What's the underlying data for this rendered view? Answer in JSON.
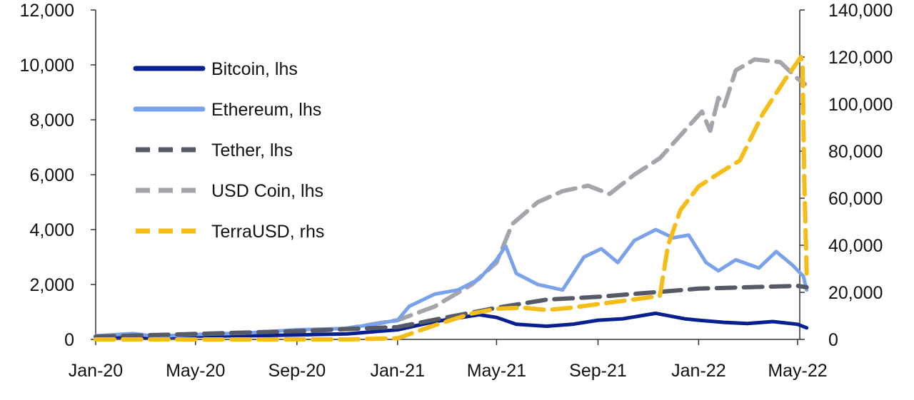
{
  "chart_data": {
    "type": "line",
    "title": "",
    "xlabel": "",
    "ylabel": "",
    "x_tick_labels": [
      "Jan-20",
      "May-20",
      "Sep-20",
      "Jan-21",
      "May-21",
      "Sep-21",
      "Jan-22",
      "May-22"
    ],
    "x_ticks": [
      "2020-01-01",
      "2020-05-01",
      "2020-09-01",
      "2021-01-01",
      "2021-05-01",
      "2021-09-01",
      "2022-01-01",
      "2022-05-01"
    ],
    "xlim": [
      "2020-01-01",
      "2022-05-15"
    ],
    "y_left": {
      "lim": [
        0,
        12000
      ],
      "ticks": [
        0,
        2000,
        4000,
        6000,
        8000,
        10000,
        12000
      ],
      "tick_labels": [
        "0",
        "2,000",
        "4,000",
        "6,000",
        "8,000",
        "10,000",
        "12,000"
      ]
    },
    "y_right": {
      "lim": [
        0,
        140000
      ],
      "ticks": [
        0,
        20000,
        40000,
        60000,
        80000,
        100000,
        120000,
        140000
      ],
      "tick_labels": [
        "0",
        "20,000",
        "40,000",
        "60,000",
        "80,000",
        "100,000",
        "120,000",
        "140,000"
      ]
    },
    "grid": false,
    "legend_position": "top-left",
    "series": [
      {
        "name": "Bitcoin, lhs",
        "axis": "left",
        "color": "#0a1f8f",
        "style": "solid",
        "x": [
          "2020-01-01",
          "2020-03-15",
          "2020-05-01",
          "2020-07-01",
          "2020-09-01",
          "2020-11-01",
          "2021-01-01",
          "2021-02-15",
          "2021-04-10",
          "2021-05-01",
          "2021-05-25",
          "2021-07-01",
          "2021-08-01",
          "2021-09-01",
          "2021-10-01",
          "2021-11-10",
          "2021-12-15",
          "2022-01-01",
          "2022-02-01",
          "2022-03-01",
          "2022-04-01",
          "2022-05-01",
          "2022-05-12"
        ],
        "y": [
          100,
          70,
          120,
          130,
          160,
          200,
          350,
          650,
          900,
          800,
          550,
          480,
          550,
          700,
          750,
          950,
          750,
          700,
          620,
          580,
          650,
          550,
          420
        ]
      },
      {
        "name": "Ethereum, lhs",
        "axis": "left",
        "color": "#7aa2ea",
        "style": "solid",
        "x": [
          "2020-01-01",
          "2020-02-15",
          "2020-03-15",
          "2020-05-01",
          "2020-07-01",
          "2020-09-01",
          "2020-11-01",
          "2021-01-01",
          "2021-01-15",
          "2021-02-15",
          "2021-03-15",
          "2021-04-10",
          "2021-05-01",
          "2021-05-12",
          "2021-05-25",
          "2021-06-20",
          "2021-07-20",
          "2021-08-15",
          "2021-09-05",
          "2021-09-25",
          "2021-10-15",
          "2021-11-10",
          "2021-12-01",
          "2021-12-20",
          "2022-01-10",
          "2022-01-25",
          "2022-02-15",
          "2022-03-15",
          "2022-04-05",
          "2022-04-25",
          "2022-05-08",
          "2022-05-12"
        ],
        "y": [
          130,
          210,
          110,
          180,
          230,
          350,
          400,
          700,
          1200,
          1650,
          1800,
          2200,
          2900,
          3400,
          2400,
          2000,
          1800,
          3000,
          3300,
          2800,
          3600,
          4000,
          3700,
          3800,
          2800,
          2500,
          2900,
          2600,
          3200,
          2700,
          2300,
          1800
        ]
      },
      {
        "name": "Tether, lhs",
        "axis": "left",
        "color": "#555a66",
        "style": "dashed",
        "x": [
          "2020-01-01",
          "2020-05-01",
          "2020-09-01",
          "2021-01-01",
          "2021-03-01",
          "2021-05-01",
          "2021-07-01",
          "2021-09-01",
          "2021-11-01",
          "2022-01-01",
          "2022-03-01",
          "2022-05-01",
          "2022-05-12"
        ],
        "y": [
          100,
          200,
          300,
          450,
          800,
          1150,
          1450,
          1550,
          1700,
          1850,
          1900,
          1950,
          1900
        ]
      },
      {
        "name": "USD Coin, lhs",
        "axis": "left",
        "color": "#a3a5ab",
        "style": "dashed",
        "x": [
          "2020-01-01",
          "2020-05-01",
          "2020-09-01",
          "2020-11-01",
          "2021-01-01",
          "2021-02-15",
          "2021-04-01",
          "2021-05-01",
          "2021-05-20",
          "2021-06-20",
          "2021-07-20",
          "2021-08-20",
          "2021-09-15",
          "2021-10-15",
          "2021-11-15",
          "2021-12-15",
          "2022-01-05",
          "2022-01-15",
          "2022-01-25",
          "2022-02-01",
          "2022-02-15",
          "2022-03-10",
          "2022-04-10",
          "2022-05-01",
          "2022-05-10"
        ],
        "y": [
          100,
          150,
          250,
          400,
          700,
          1200,
          2000,
          2800,
          4200,
          5000,
          5400,
          5600,
          5300,
          6000,
          6600,
          7600,
          8300,
          7600,
          8800,
          8500,
          9800,
          10200,
          10100,
          9500,
          9300
        ]
      },
      {
        "name": "TerraUSD, rhs",
        "axis": "right",
        "color": "#f5bd17",
        "style": "dashed",
        "x": [
          "2020-01-01",
          "2020-11-01",
          "2021-01-01",
          "2021-02-15",
          "2021-04-01",
          "2021-05-01",
          "2021-06-01",
          "2021-07-01",
          "2021-08-01",
          "2021-09-01",
          "2021-10-15",
          "2021-11-15",
          "2021-11-25",
          "2021-12-10",
          "2022-01-01",
          "2022-02-01",
          "2022-02-20",
          "2022-03-20",
          "2022-04-15",
          "2022-05-05",
          "2022-05-07",
          "2022-05-09",
          "2022-05-12"
        ],
        "y": [
          0,
          0,
          500,
          6000,
          11000,
          13000,
          13500,
          12500,
          13500,
          15000,
          17000,
          18500,
          40000,
          55000,
          65000,
          72000,
          76000,
          96000,
          110000,
          120000,
          118000,
          70000,
          28000
        ]
      }
    ]
  }
}
